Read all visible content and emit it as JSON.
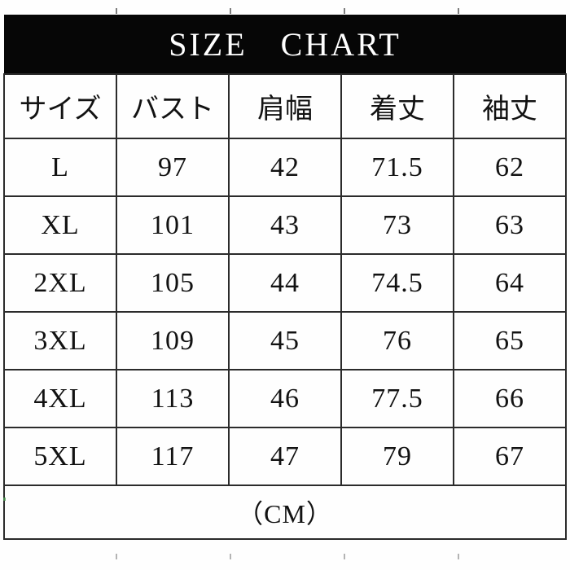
{
  "title": "SIZE CHART",
  "colors": {
    "banner_bg": "#060606",
    "banner_text": "#ffffff",
    "grid": "#2b2b2b",
    "text": "#121212",
    "background": "#fefefe"
  },
  "chart_data": {
    "type": "table",
    "title": "SIZE CHART",
    "columns": [
      "サイズ",
      "バスト",
      "肩幅",
      "着丈",
      "袖丈"
    ],
    "rows": [
      [
        "L",
        "97",
        "42",
        "71.5",
        "62"
      ],
      [
        "XL",
        "101",
        "43",
        "73",
        "63"
      ],
      [
        "2XL",
        "105",
        "44",
        "74.5",
        "64"
      ],
      [
        "3XL",
        "109",
        "45",
        "76",
        "65"
      ],
      [
        "4XL",
        "113",
        "46",
        "77.5",
        "66"
      ],
      [
        "5XL",
        "117",
        "47",
        "79",
        "67"
      ]
    ],
    "footer": "（CM）",
    "unit": "CM",
    "layout": {
      "grid": true,
      "header_style": "bordered",
      "banner_style": "black-bar"
    }
  }
}
